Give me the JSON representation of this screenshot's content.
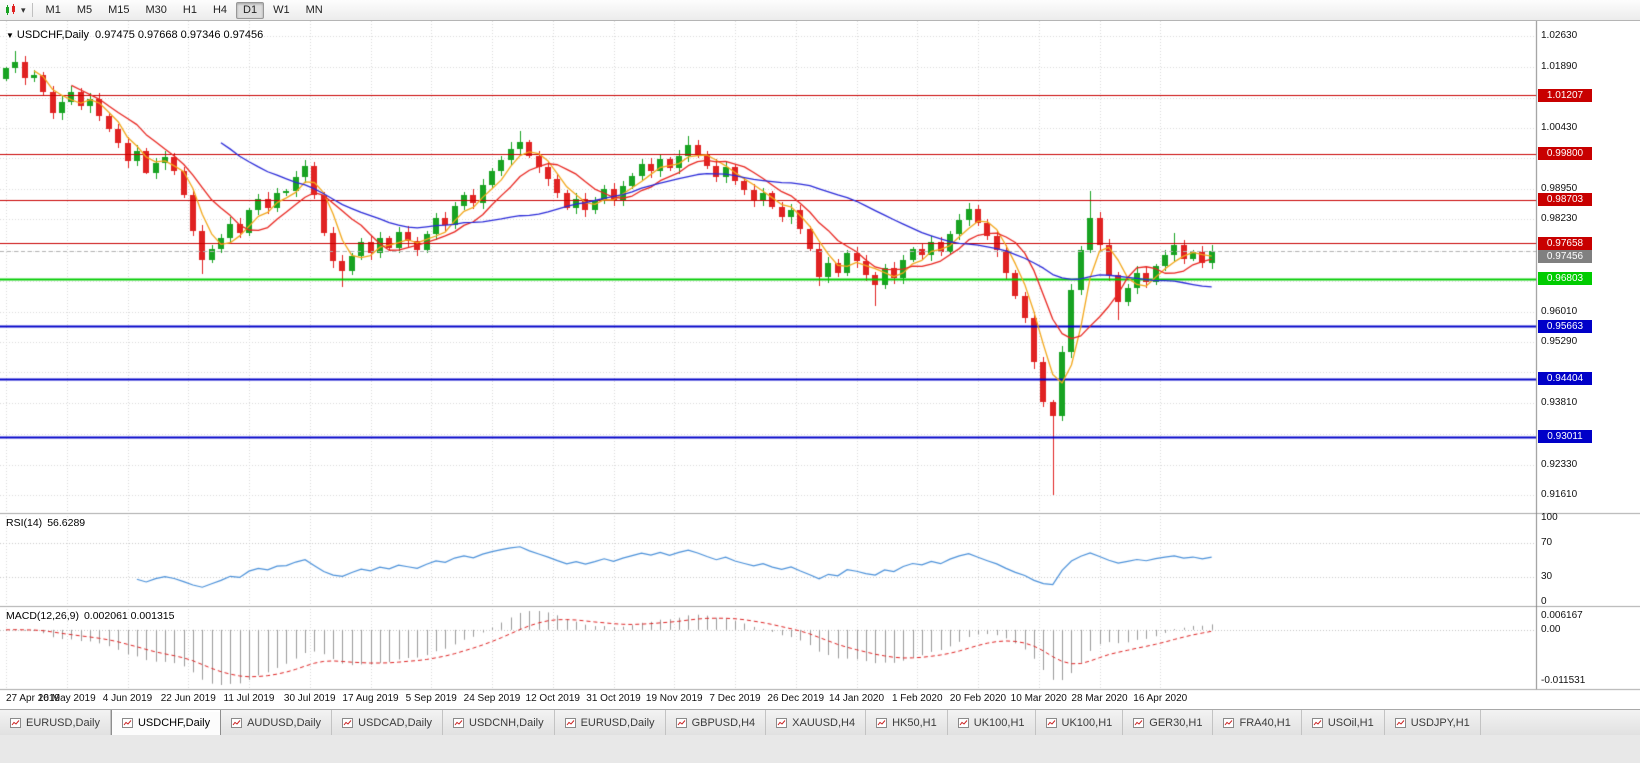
{
  "toolbar": {
    "timeframes": [
      "M1",
      "M5",
      "M15",
      "M30",
      "H1",
      "H4",
      "D1",
      "W1",
      "MN"
    ],
    "active": "D1"
  },
  "chart": {
    "title_text": "USDCHF,Daily",
    "ohlc_text": "0.97475 0.97668 0.97346 0.97456"
  },
  "chart_data": {
    "type": "candlestick",
    "symbol": "USDCHF",
    "timeframe": "Daily",
    "ohlc_display": {
      "open": "0.97475",
      "high": "0.97668",
      "low": "0.97346",
      "close": "0.97456"
    },
    "x_labels": [
      "27 Apr 2019",
      "16 May 2019",
      "4 Jun 2019",
      "22 Jun 2019",
      "11 Jul 2019",
      "30 Jul 2019",
      "17 Aug 2019",
      "5 Sep 2019",
      "24 Sep 2019",
      "12 Oct 2019",
      "31 Oct 2019",
      "19 Nov 2019",
      "7 Dec 2019",
      "26 Dec 2019",
      "14 Jan 2020",
      "1 Feb 2020",
      "20 Feb 2020",
      "10 Mar 2020",
      "28 Mar 2020",
      "16 Apr 2020"
    ],
    "bars_per_label": 6.5,
    "price_axis": {
      "ylim": [
        0.9118,
        1.0299
      ],
      "ticks": [
        {
          "v": 1.0263,
          "t": "1.02630"
        },
        {
          "v": 1.0189,
          "t": "1.01890"
        },
        {
          "v": 1.0115
        },
        {
          "v": 1.0043,
          "t": "1.00430"
        },
        {
          "v": 0.9969
        },
        {
          "v": 0.9895,
          "t": "0.98950"
        },
        {
          "v": 0.9823,
          "t": "0.98230"
        },
        {
          "v": 0.9747
        },
        {
          "v": 0.9675
        },
        {
          "v": 0.9601,
          "t": "0.96010"
        },
        {
          "v": 0.9529,
          "t": "0.95290"
        },
        {
          "v": 0.9455
        },
        {
          "v": 0.9381,
          "t": "0.93810"
        },
        {
          "v": 0.9307
        },
        {
          "v": 0.9233,
          "t": "0.92330"
        },
        {
          "v": 0.9161,
          "t": "0.91610"
        }
      ]
    },
    "levels": [
      {
        "value": 1.01207,
        "label": "1.01207",
        "color": "red"
      },
      {
        "value": 0.998,
        "label": "0.99800",
        "color": "red"
      },
      {
        "value": 0.98703,
        "label": "0.98703",
        "color": "red"
      },
      {
        "value": 0.97658,
        "label": "0.97658",
        "color": "red"
      },
      {
        "value": 0.96803,
        "label": "0.96803",
        "color": "green"
      },
      {
        "value": 0.95663,
        "label": "0.95663",
        "color": "blue"
      },
      {
        "value": 0.94404,
        "label": "0.94404",
        "color": "blue"
      },
      {
        "value": 0.93011,
        "label": "0.93011",
        "color": "blue"
      }
    ],
    "current_price": {
      "value": 0.97456,
      "label": "0.97456"
    },
    "candles": {
      "first_open": 1.016,
      "default_wick": 0.0013,
      "closes": [
        1.0185,
        1.02,
        1.0162,
        1.017,
        1.0128,
        1.0078,
        1.0105,
        1.0128,
        1.0095,
        1.0112,
        1.0072,
        1.004,
        1.0005,
        0.9962,
        0.9988,
        0.9935,
        0.9958,
        0.9972,
        0.994,
        0.988,
        0.9795,
        0.9725,
        0.9752,
        0.9778,
        0.9812,
        0.979,
        0.9845,
        0.9872,
        0.985,
        0.9885,
        0.989,
        0.9925,
        0.995,
        0.988,
        0.979,
        0.9722,
        0.9698,
        0.9735,
        0.9768,
        0.9742,
        0.9778,
        0.9755,
        0.9792,
        0.977,
        0.9748,
        0.9788,
        0.9825,
        0.9808,
        0.9855,
        0.988,
        0.9862,
        0.9905,
        0.9938,
        0.9965,
        0.9992,
        1.0008,
        0.9975,
        0.9948,
        0.992,
        0.9885,
        0.985,
        0.9872,
        0.9845,
        0.9868,
        0.9895,
        0.987,
        0.9902,
        0.9928,
        0.9955,
        0.9938,
        0.9968,
        0.9945,
        0.9975,
        1.0002,
        0.998,
        0.9952,
        0.9925,
        0.9948,
        0.9915,
        0.9892,
        0.9868,
        0.9885,
        0.9852,
        0.9828,
        0.9845,
        0.98,
        0.9752,
        0.9685,
        0.9718,
        0.9695,
        0.9742,
        0.9722,
        0.9688,
        0.9665,
        0.9705,
        0.9682,
        0.9725,
        0.9752,
        0.9738,
        0.9768,
        0.9745,
        0.9788,
        0.9822,
        0.9848,
        0.9815,
        0.9782,
        0.9748,
        0.9695,
        0.9638,
        0.9585,
        0.948,
        0.9385,
        0.935,
        0.9505,
        0.9652,
        0.9748,
        0.9825,
        0.976,
        0.9688,
        0.9625,
        0.9658,
        0.9695,
        0.9672,
        0.971,
        0.9738,
        0.9762,
        0.9728,
        0.9745,
        0.9718,
        0.97456
      ],
      "extra_highs": {
        "1": 1.0226,
        "7": 1.0142,
        "55": 1.0035,
        "73": 1.0023,
        "116": 0.989,
        "125": 0.979
      },
      "extra_lows": {
        "21": 0.9693,
        "36": 0.9659,
        "87": 0.9662,
        "93": 0.9613,
        "112": 0.9161,
        "119": 0.9582
      }
    },
    "moving_averages": [
      {
        "name": "fast",
        "period": 4,
        "color": "#f2a71b"
      },
      {
        "name": "medium",
        "period": 8,
        "color": "#e8251f"
      },
      {
        "name": "slow",
        "period": 24,
        "color": "#2929d8"
      }
    ],
    "rsi": {
      "title": "RSI(14)",
      "value": "56.6289",
      "period": 14,
      "axis_labels": [
        {
          "t": "100",
          "v": 100
        },
        {
          "t": "70",
          "v": 70
        },
        {
          "t": "30",
          "v": 30
        },
        {
          "t": "0",
          "v": 0
        }
      ],
      "guide_levels": [
        70,
        30
      ]
    },
    "macd": {
      "title": "MACD(12,26,9)",
      "values": "0.002061 0.001315",
      "fast": 12,
      "slow": 26,
      "signal": 9,
      "axis": [
        "0.006167",
        "0.00",
        "-0.011531"
      ]
    },
    "colors": {
      "up": "#18a322",
      "down": "#e02222",
      "ma_fast": "#f2a71b",
      "ma_mid": "#e8251f",
      "ma_slow": "#2929d8",
      "level_red": "#c80000",
      "level_green": "#00cc00",
      "level_blue": "#0000c8",
      "current_line": "#b0b0b0",
      "current_badge": "#808080",
      "rsi_line": "#4a90d9",
      "macd_hist": "#9a9a9a",
      "macd_signal": "#dd2222",
      "grid": "#d8d8d8"
    }
  },
  "tabs": {
    "active_index": 1,
    "items": [
      "EURUSD,Daily",
      "USDCHF,Daily",
      "AUDUSD,Daily",
      "USDCAD,Daily",
      "USDCNH,Daily",
      "EURUSD,Daily",
      "GBPUSD,H4",
      "XAUUSD,H4",
      "HK50,H1",
      "UK100,H1",
      "UK100,H1",
      "GER30,H1",
      "FRA40,H1",
      "USOil,H1",
      "USDJPY,H1"
    ]
  }
}
